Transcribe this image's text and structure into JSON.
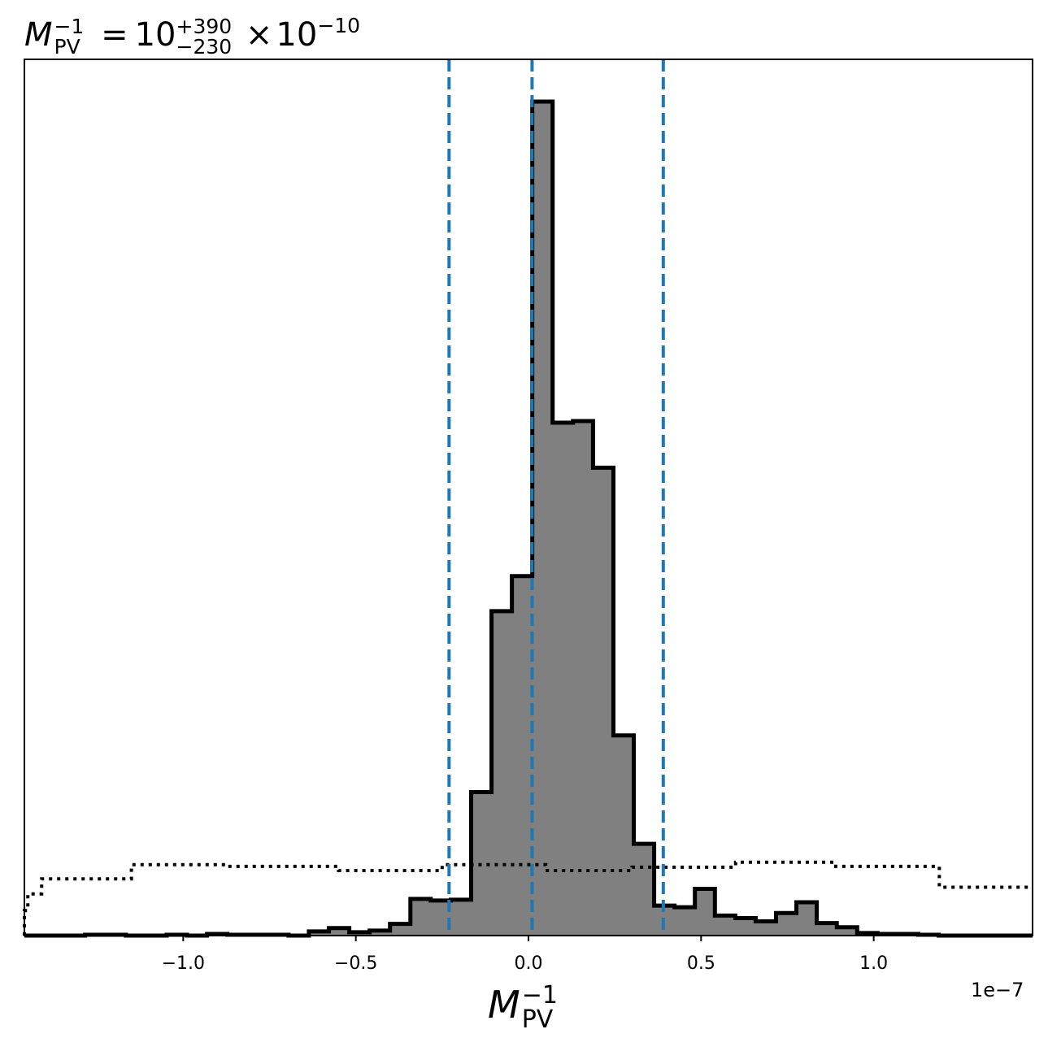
{
  "chart_data": {
    "type": "bar",
    "title": {
      "lhs_symbol": "M",
      "lhs_sub": "PV",
      "lhs_sup": "−1",
      "equals": "=",
      "median": "10",
      "upper": "+390",
      "lower": "−230",
      "times": "×",
      "multiplier_base": "10",
      "multiplier_exp": "−10"
    },
    "xlabel": {
      "symbol": "M",
      "sub": "PV",
      "sup": "−1"
    },
    "offset_text": "1e−7",
    "x_scale_factor": 1e-07,
    "xlim": [
      -1.46,
      1.46
    ],
    "ylim": [
      0,
      1.0
    ],
    "x_ticks": [
      -1.0,
      -0.5,
      0.0,
      0.5,
      1.0
    ],
    "x_tick_labels": [
      "−1.0",
      "−0.5",
      "0.0",
      "0.5",
      "1.0"
    ],
    "y_axis_visible": false,
    "grid": false,
    "posterior": {
      "fill_color": "#808080",
      "edge_color": "#000000",
      "bin_edges": [
        -1.46,
        -1.401,
        -1.342,
        -1.284,
        -1.225,
        -1.166,
        -1.107,
        -1.048,
        -0.989,
        -0.931,
        -0.872,
        -0.813,
        -0.754,
        -0.695,
        -0.636,
        -0.578,
        -0.519,
        -0.46,
        -0.401,
        -0.342,
        -0.283,
        -0.225,
        -0.166,
        -0.107,
        -0.048,
        0.011,
        0.07,
        0.129,
        0.187,
        0.246,
        0.305,
        0.364,
        0.423,
        0.482,
        0.54,
        0.599,
        0.658,
        0.717,
        0.776,
        0.835,
        0.893,
        0.952,
        1.011,
        1.07,
        1.129,
        1.188,
        1.246,
        1.305,
        1.364,
        1.46
      ],
      "heights": [
        0.0,
        0.0,
        0.0,
        0.001,
        0.001,
        0.0,
        0.0,
        0.001,
        0.0,
        0.002,
        0.001,
        0.001,
        0.001,
        0.0,
        0.005,
        0.009,
        0.004,
        0.006,
        0.014,
        0.044,
        0.042,
        0.043,
        0.172,
        0.389,
        0.431,
        1.0,
        0.615,
        0.617,
        0.561,
        0.24,
        0.11,
        0.036,
        0.034,
        0.056,
        0.024,
        0.021,
        0.017,
        0.027,
        0.04,
        0.015,
        0.01,
        0.003,
        0.002,
        0.002,
        0.001,
        0.0,
        0.0,
        0.0,
        0.0
      ]
    },
    "prior": {
      "line_style": "dotted",
      "color": "#000000",
      "bin_edges": [
        -1.46,
        -1.45,
        -1.41,
        -1.15,
        -0.87,
        -0.55,
        -0.25,
        0.05,
        0.3,
        0.6,
        0.89,
        1.19,
        1.46
      ],
      "heights": [
        0.03,
        0.05,
        0.068,
        0.085,
        0.083,
        0.078,
        0.085,
        0.078,
        0.082,
        0.088,
        0.083,
        0.058
      ]
    },
    "quantile_lines": {
      "color": "#1f77b4",
      "line_style": "dashed",
      "values": [
        -0.23,
        0.0104,
        0.3904
      ]
    }
  }
}
